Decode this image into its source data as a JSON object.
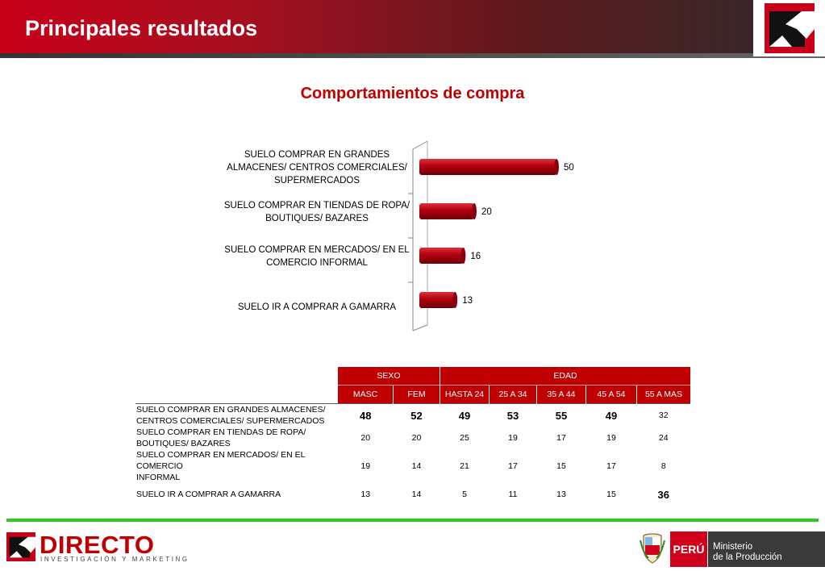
{
  "header": {
    "title": "Principales resultados"
  },
  "subtitle": "Comportamientos de compra",
  "colors": {
    "accent": "#c00000",
    "bar": "#b0000f",
    "green_rule": "#2ecc1f"
  },
  "chart_data": {
    "type": "bar",
    "orientation": "horizontal",
    "title": "",
    "categories": [
      [
        "SUELO COMPRAR EN GRANDES",
        "ALMACENES/ CENTROS COMERCIALES/",
        "SUPERMERCADOS"
      ],
      [
        "SUELO COMPRAR EN TIENDAS DE ROPA/",
        "BOUTIQUES/ BAZARES"
      ],
      [
        "SUELO COMPRAR EN MERCADOS/ EN EL",
        "COMERCIO INFORMAL"
      ],
      [
        "SUELO IR A COMPRAR A GAMARRA"
      ]
    ],
    "values": [
      50,
      20,
      16,
      13
    ],
    "value_labels": [
      "50",
      "20",
      "16",
      "13"
    ],
    "xlim": [
      0,
      55
    ],
    "grid": false
  },
  "table": {
    "group_headers": [
      "SEXO",
      "EDAD"
    ],
    "columns": [
      "MASC",
      "FEM",
      "HASTA 24",
      "25 A 34",
      "35 A 44",
      "45 A 54",
      "55 A MAS"
    ],
    "rows": [
      {
        "label": [
          "SUELO COMPRAR EN GRANDES ALMACENES/",
          "CENTROS COMERCIALES/ SUPERMERCADOS"
        ],
        "values": [
          "48",
          "52",
          "49",
          "53",
          "55",
          "49",
          "32"
        ]
      },
      {
        "label": [
          "SUELO COMPRAR EN TIENDAS DE ROPA/",
          "BOUTIQUES/ BAZARES"
        ],
        "values": [
          "20",
          "20",
          "25",
          "19",
          "17",
          "19",
          "24"
        ]
      },
      {
        "label": [
          "SUELO COMPRAR EN MERCADOS/ EN EL COMERCIO",
          "INFORMAL"
        ],
        "values": [
          "19",
          "14",
          "21",
          "17",
          "15",
          "17",
          "8"
        ]
      },
      {
        "label": [
          "SUELO IR A COMPRAR A GAMARRA"
        ],
        "values": [
          "13",
          "14",
          "5",
          "11",
          "13",
          "15",
          "36"
        ]
      }
    ]
  },
  "footer": {
    "brand": "DIRECTO",
    "brand_sub": "INVESTIGACIÓN Y MARKETING",
    "peru": "PERÚ",
    "ministry_line1": "Ministerio",
    "ministry_line2": "de la Producción"
  }
}
